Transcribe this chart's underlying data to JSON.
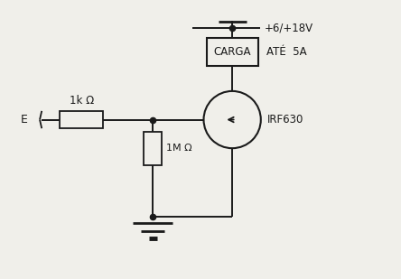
{
  "bg_color": "#f0efea",
  "line_color": "#1a1a1a",
  "label_E": "E",
  "label_R1": "1k Ω",
  "label_R2": "1M Ω",
  "label_CARGA": "CARGA",
  "label_voltage": "+6/+18V",
  "label_current": "ATÉ  5A",
  "label_mosfet": "IRF630",
  "figsize": [
    4.44,
    3.09
  ],
  "dpi": 100,
  "xlim": [
    0,
    10
  ],
  "ylim": [
    0,
    7
  ]
}
